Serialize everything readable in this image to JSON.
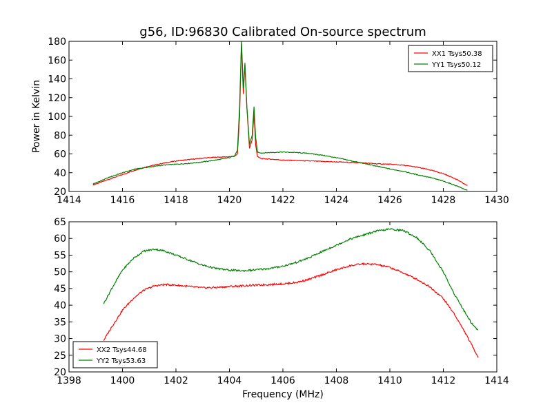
{
  "title": "g56, ID:96830 Calibrated On-source spectrum",
  "ylabel": "Power in Kelvin",
  "xlabel": "Frequency (MHz)",
  "chart_data": [
    {
      "type": "line",
      "xlim": [
        1414,
        1430
      ],
      "ylim": [
        20,
        180
      ],
      "xticks": [
        1414,
        1416,
        1418,
        1420,
        1422,
        1424,
        1426,
        1428,
        1430
      ],
      "yticks": [
        20,
        40,
        60,
        80,
        100,
        120,
        140,
        160,
        180
      ],
      "legend": "top-right",
      "series": [
        {
          "name": "XX1 Tsys50.38",
          "color": "#ff0000",
          "points": [
            [
              1414.9,
              27
            ],
            [
              1415.5,
              33
            ],
            [
              1416,
              38
            ],
            [
              1416.5,
              43
            ],
            [
              1417,
              47
            ],
            [
              1417.5,
              50
            ],
            [
              1418,
              52.5
            ],
            [
              1418.5,
              54
            ],
            [
              1419,
              55.5
            ],
            [
              1419.5,
              56.5
            ],
            [
              1420,
              57
            ],
            [
              1420.2,
              57.5
            ],
            [
              1420.3,
              60
            ],
            [
              1420.38,
              100
            ],
            [
              1420.45,
              178
            ],
            [
              1420.52,
              124
            ],
            [
              1420.58,
              155
            ],
            [
              1420.65,
              110
            ],
            [
              1420.75,
              66
            ],
            [
              1420.85,
              75
            ],
            [
              1420.92,
              103
            ],
            [
              1420.98,
              70
            ],
            [
              1421.05,
              57
            ],
            [
              1421.2,
              55
            ],
            [
              1421.5,
              54.5
            ],
            [
              1422,
              53.5
            ],
            [
              1422.5,
              53
            ],
            [
              1423,
              52.5
            ],
            [
              1423.5,
              52
            ],
            [
              1424,
              51.5
            ],
            [
              1424.5,
              51
            ],
            [
              1425,
              50.5
            ],
            [
              1425.5,
              49.5
            ],
            [
              1426,
              49
            ],
            [
              1426.5,
              48
            ],
            [
              1427,
              46
            ],
            [
              1427.5,
              43
            ],
            [
              1428,
              39
            ],
            [
              1428.5,
              33
            ],
            [
              1428.9,
              26
            ]
          ]
        },
        {
          "name": "YY1 Tsys50.12",
          "color": "#008000",
          "points": [
            [
              1414.9,
              28
            ],
            [
              1415.5,
              35
            ],
            [
              1416,
              40
            ],
            [
              1416.5,
              44
            ],
            [
              1417,
              46
            ],
            [
              1417.5,
              48
            ],
            [
              1418,
              49
            ],
            [
              1418.5,
              50
            ],
            [
              1419,
              51.5
            ],
            [
              1419.5,
              53.5
            ],
            [
              1420,
              56
            ],
            [
              1420.2,
              58.5
            ],
            [
              1420.3,
              64
            ],
            [
              1420.38,
              110
            ],
            [
              1420.45,
              180
            ],
            [
              1420.52,
              130
            ],
            [
              1420.58,
              157
            ],
            [
              1420.65,
              112
            ],
            [
              1420.75,
              70
            ],
            [
              1420.85,
              80
            ],
            [
              1420.92,
              110
            ],
            [
              1420.98,
              78
            ],
            [
              1421.05,
              62
            ],
            [
              1421.2,
              61
            ],
            [
              1421.5,
              61.5
            ],
            [
              1422,
              62
            ],
            [
              1422.5,
              61.5
            ],
            [
              1423,
              60.5
            ],
            [
              1423.5,
              58.5
            ],
            [
              1424,
              56
            ],
            [
              1424.5,
              53
            ],
            [
              1425,
              50
            ],
            [
              1425.5,
              47
            ],
            [
              1426,
              44
            ],
            [
              1426.5,
              41.5
            ],
            [
              1427,
              38
            ],
            [
              1427.5,
              35
            ],
            [
              1428,
              31
            ],
            [
              1428.5,
              26
            ],
            [
              1428.9,
              21
            ]
          ]
        }
      ]
    },
    {
      "type": "line",
      "xlim": [
        1398,
        1414
      ],
      "ylim": [
        20,
        65
      ],
      "xticks": [
        1398,
        1400,
        1402,
        1404,
        1406,
        1408,
        1410,
        1412,
        1414
      ],
      "yticks": [
        20,
        25,
        30,
        35,
        40,
        45,
        50,
        55,
        60,
        65
      ],
      "legend": "bottom-left",
      "series": [
        {
          "name": "XX2 Tsys44.68",
          "color": "#ff0000",
          "points": [
            [
              1399.3,
              29.5
            ],
            [
              1399.6,
              33.5
            ],
            [
              1400,
              38.5
            ],
            [
              1400.4,
              42
            ],
            [
              1400.8,
              44.5
            ],
            [
              1401.2,
              45.8
            ],
            [
              1401.6,
              46.2
            ],
            [
              1402,
              46
            ],
            [
              1402.5,
              45.6
            ],
            [
              1403,
              45.2
            ],
            [
              1403.5,
              45.3
            ],
            [
              1404,
              45.6
            ],
            [
              1404.5,
              45.8
            ],
            [
              1405,
              46
            ],
            [
              1405.5,
              46.2
            ],
            [
              1406,
              46.4
            ],
            [
              1406.5,
              46.8
            ],
            [
              1407,
              47.8
            ],
            [
              1407.5,
              49.2
            ],
            [
              1408,
              50.6
            ],
            [
              1408.5,
              51.8
            ],
            [
              1409,
              52.4
            ],
            [
              1409.5,
              52.2
            ],
            [
              1410,
              51.3
            ],
            [
              1410.5,
              49.7
            ],
            [
              1411,
              47.8
            ],
            [
              1411.5,
              45.5
            ],
            [
              1412,
              42
            ],
            [
              1412.4,
              37.5
            ],
            [
              1412.8,
              32
            ],
            [
              1413.1,
              27.5
            ],
            [
              1413.3,
              24.5
            ]
          ]
        },
        {
          "name": "YY2 Tsys53.63",
          "color": "#008000",
          "points": [
            [
              1399.3,
              40.5
            ],
            [
              1399.6,
              45
            ],
            [
              1400,
              50.5
            ],
            [
              1400.4,
              54
            ],
            [
              1400.8,
              56.2
            ],
            [
              1401.2,
              56.8
            ],
            [
              1401.6,
              56.2
            ],
            [
              1402,
              55
            ],
            [
              1402.5,
              53.5
            ],
            [
              1403,
              52
            ],
            [
              1403.5,
              51
            ],
            [
              1404,
              50.5
            ],
            [
              1404.5,
              50.3
            ],
            [
              1405,
              50.6
            ],
            [
              1405.5,
              51
            ],
            [
              1406,
              51.7
            ],
            [
              1406.5,
              52.8
            ],
            [
              1407,
              54.3
            ],
            [
              1407.5,
              56.2
            ],
            [
              1408,
              58
            ],
            [
              1408.5,
              59.8
            ],
            [
              1409,
              61
            ],
            [
              1409.5,
              62.2
            ],
            [
              1410,
              62.8
            ],
            [
              1410.5,
              62.4
            ],
            [
              1411,
              60.3
            ],
            [
              1411.5,
              56.3
            ],
            [
              1412,
              50
            ],
            [
              1412.4,
              43.5
            ],
            [
              1412.8,
              38
            ],
            [
              1413.1,
              34
            ],
            [
              1413.3,
              32.5
            ]
          ]
        }
      ]
    }
  ]
}
